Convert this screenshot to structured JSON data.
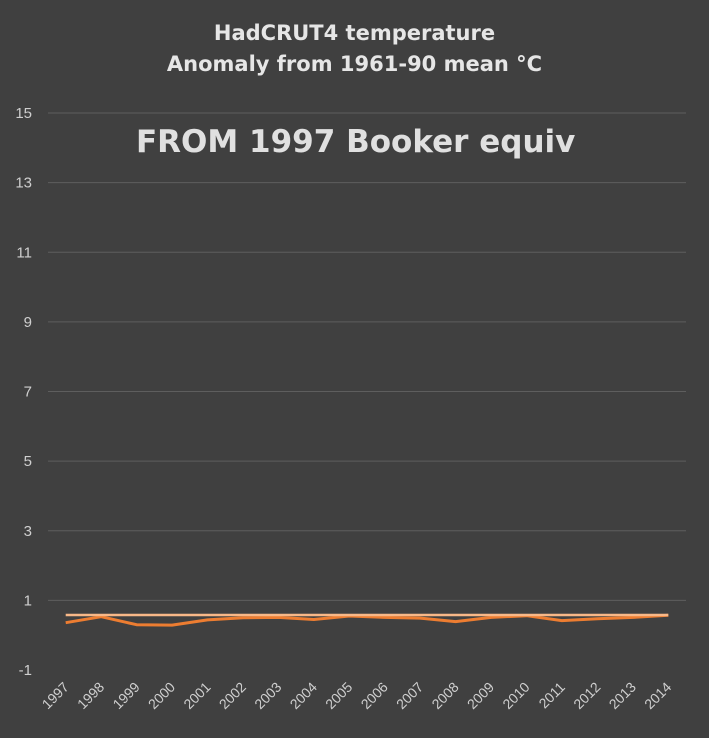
{
  "chart_data": {
    "type": "line",
    "title": "HadCRUT4 temperature",
    "subtitle": "Anomaly from 1961-90 mean °C",
    "annotation": "FROM 1997 Booker equiv",
    "xlabel": "",
    "ylabel": "",
    "ylim": [
      -1,
      15
    ],
    "yticks": [
      -1,
      1,
      3,
      5,
      7,
      9,
      11,
      13,
      15
    ],
    "grid": true,
    "legend": "none",
    "categories": [
      "1997",
      "1998",
      "1999",
      "2000",
      "2001",
      "2002",
      "2003",
      "2004",
      "2005",
      "2006",
      "2007",
      "2008",
      "2009",
      "2010",
      "2011",
      "2012",
      "2013",
      "2014"
    ],
    "series": [
      {
        "color": "#ed7d31",
        "values": [
          0.36,
          0.53,
          0.3,
          0.29,
          0.44,
          0.5,
          0.51,
          0.45,
          0.55,
          0.51,
          0.49,
          0.39,
          0.51,
          0.56,
          0.42,
          0.47,
          0.51,
          0.57
        ]
      },
      {
        "color": "#f8b888",
        "values": [
          0.58,
          0.58,
          0.58,
          0.58,
          0.58,
          0.58,
          0.58,
          0.58,
          0.58,
          0.58,
          0.58,
          0.58,
          0.58,
          0.58,
          0.58,
          0.58,
          0.58,
          0.58
        ]
      }
    ]
  }
}
